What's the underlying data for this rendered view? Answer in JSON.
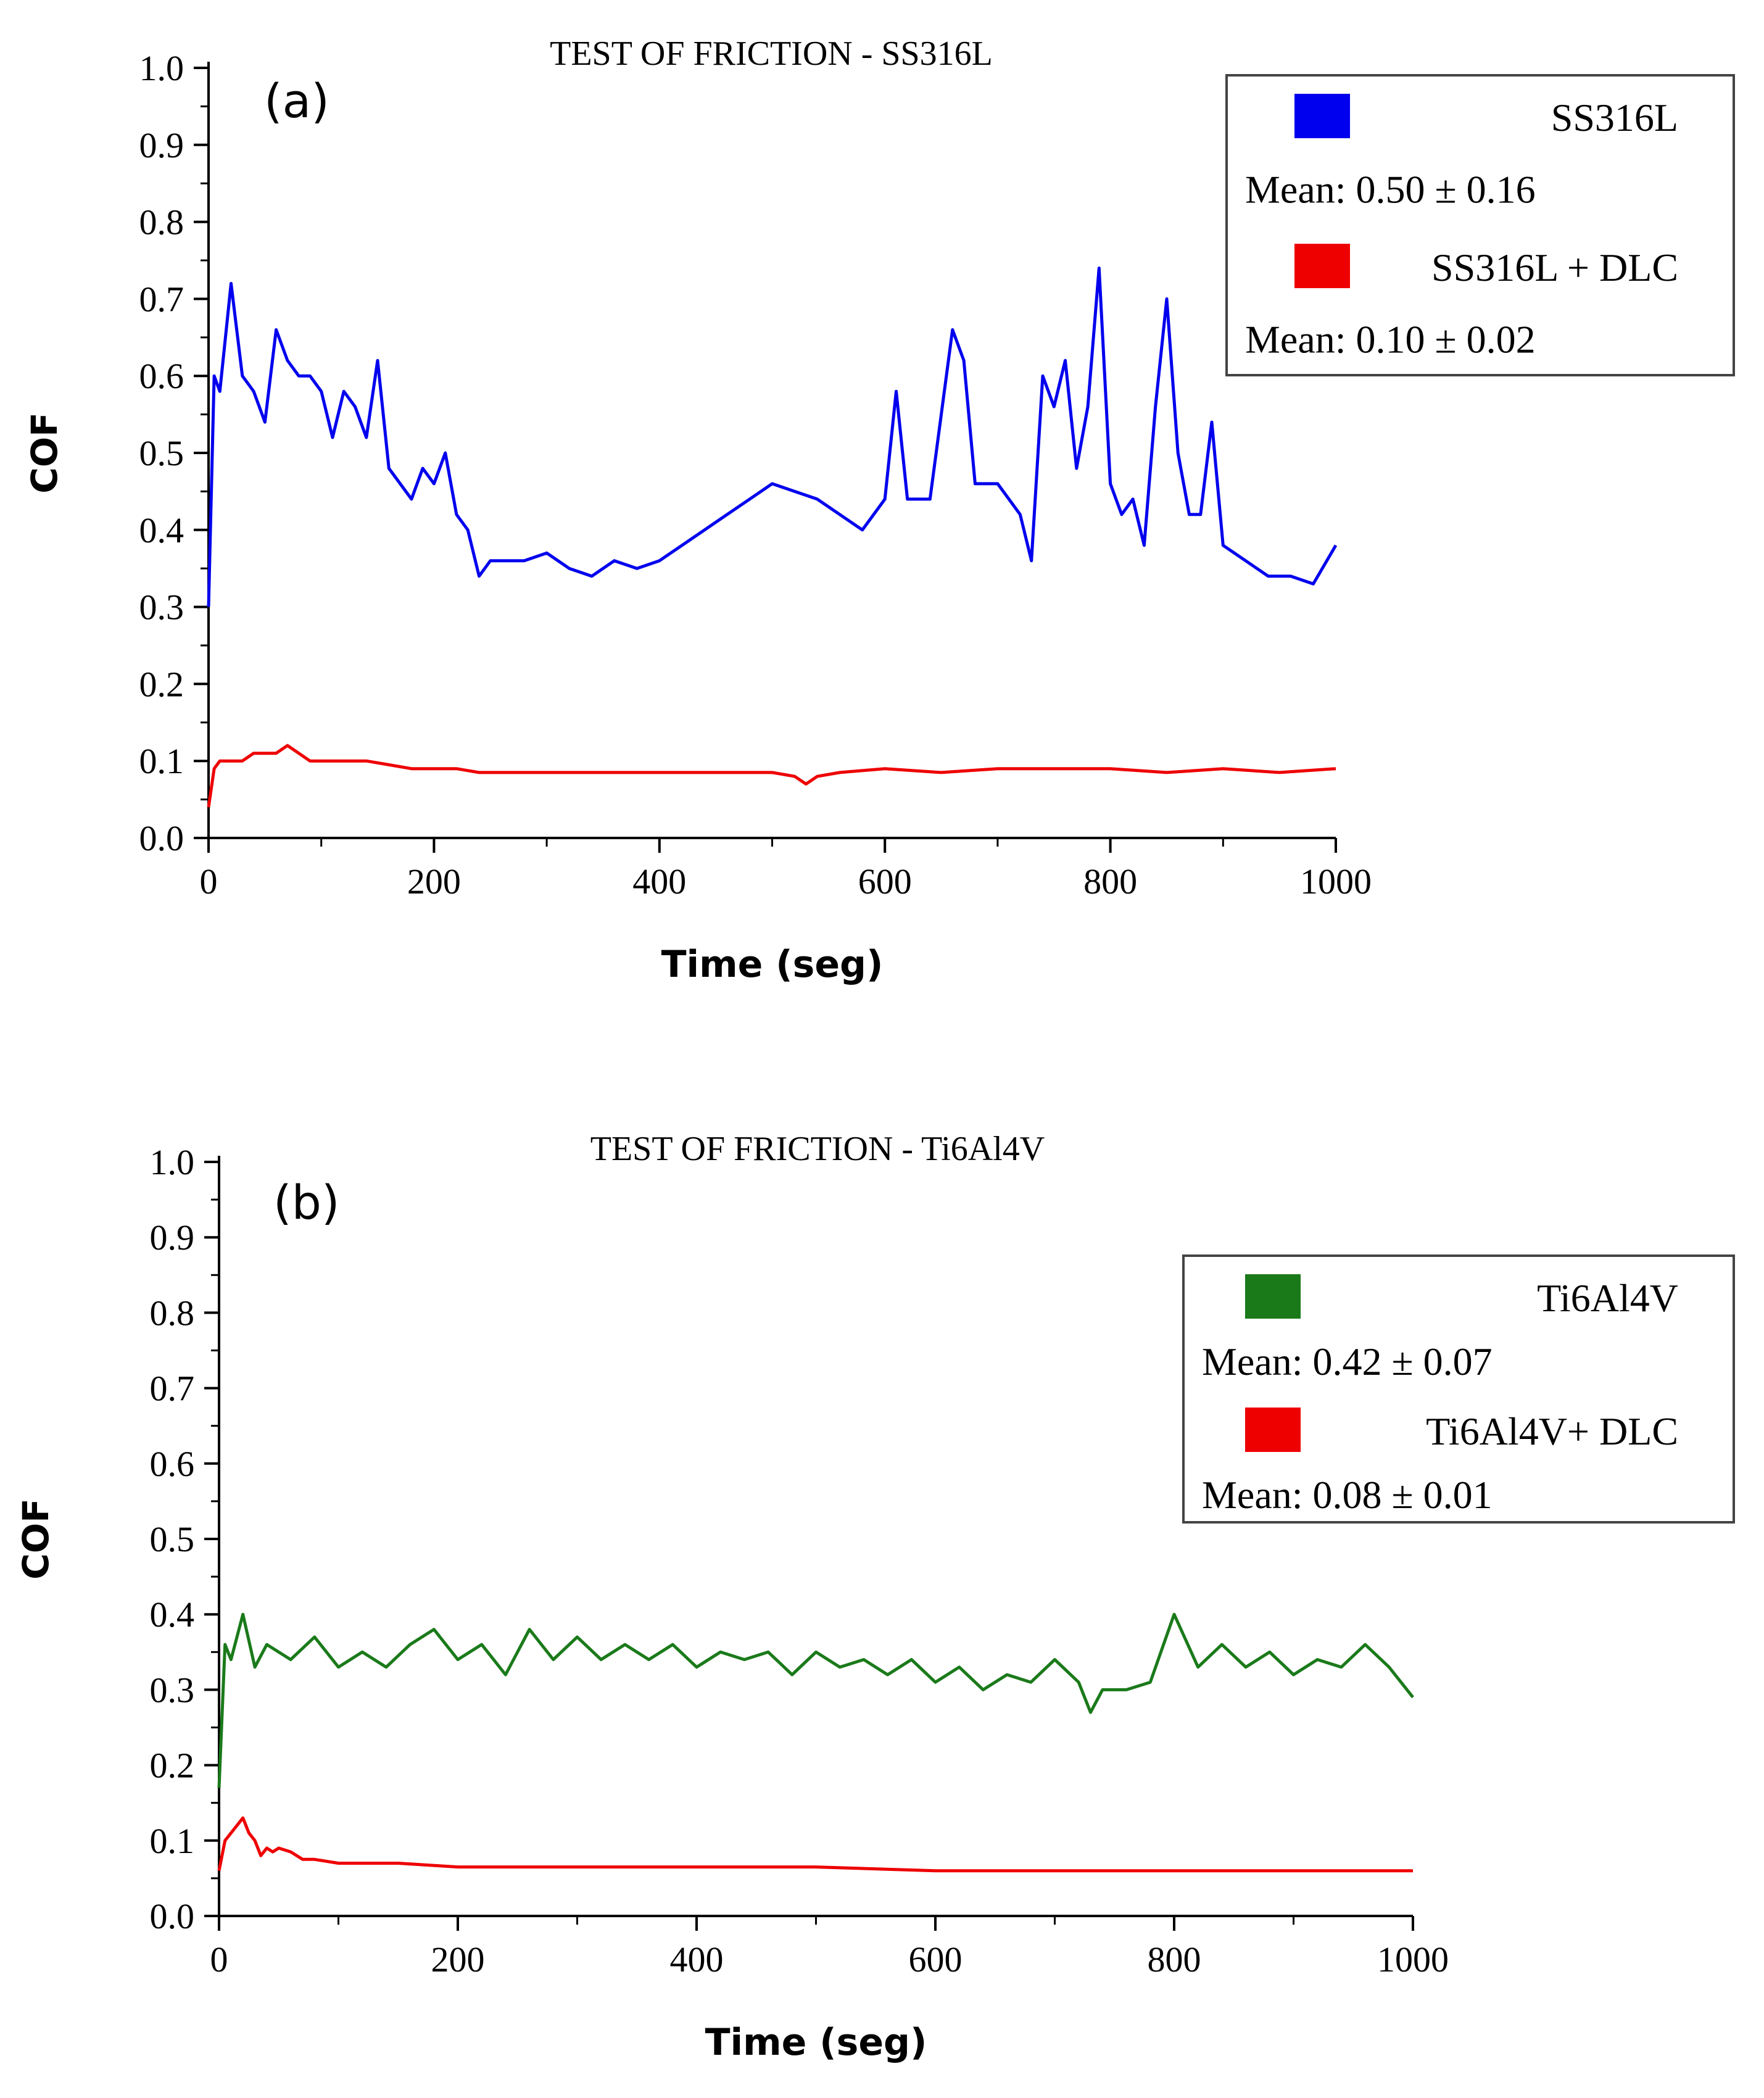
{
  "chart_data": [
    {
      "type": "line",
      "panel_label": "(a)",
      "title": "TEST OF FRICTION - SS316L",
      "xlabel": "Time (seg)",
      "ylabel": "COF",
      "xlim": [
        0,
        1000
      ],
      "ylim": [
        0,
        1.0
      ],
      "xticks": [
        "0",
        "200",
        "400",
        "600",
        "800",
        "1000"
      ],
      "yticks": [
        "0.0",
        "0.1",
        "0.2",
        "0.3",
        "0.4",
        "0.5",
        "0.6",
        "0.7",
        "0.8",
        "0.9",
        "1.0"
      ],
      "legend_position": "top-right",
      "series": [
        {
          "name": "SS316L",
          "color": "#0000ee",
          "mean_label": "Mean: 0.50 ± 0.16",
          "x": [
            0,
            5,
            10,
            20,
            30,
            40,
            50,
            60,
            70,
            80,
            90,
            100,
            110,
            120,
            130,
            140,
            150,
            160,
            170,
            180,
            190,
            200,
            210,
            220,
            230,
            240,
            250,
            260,
            280,
            300,
            320,
            340,
            360,
            380,
            400,
            420,
            440,
            460,
            480,
            500,
            520,
            540,
            560,
            580,
            600,
            610,
            620,
            640,
            660,
            670,
            680,
            700,
            720,
            730,
            740,
            750,
            760,
            770,
            780,
            790,
            800,
            810,
            820,
            830,
            840,
            850,
            860,
            870,
            880,
            890,
            900,
            920,
            940,
            960,
            980,
            1000
          ],
          "values": [
            0.3,
            0.6,
            0.58,
            0.72,
            0.6,
            0.58,
            0.54,
            0.66,
            0.62,
            0.6,
            0.6,
            0.58,
            0.52,
            0.58,
            0.56,
            0.52,
            0.62,
            0.48,
            0.46,
            0.44,
            0.48,
            0.46,
            0.5,
            0.42,
            0.4,
            0.34,
            0.36,
            0.36,
            0.36,
            0.37,
            0.35,
            0.34,
            0.36,
            0.35,
            0.36,
            0.38,
            0.4,
            0.42,
            0.44,
            0.46,
            0.45,
            0.44,
            0.42,
            0.4,
            0.44,
            0.58,
            0.44,
            0.44,
            0.66,
            0.62,
            0.46,
            0.46,
            0.42,
            0.36,
            0.6,
            0.56,
            0.62,
            0.48,
            0.56,
            0.74,
            0.46,
            0.42,
            0.44,
            0.38,
            0.56,
            0.7,
            0.5,
            0.42,
            0.42,
            0.54,
            0.38,
            0.36,
            0.34,
            0.34,
            0.33,
            0.38
          ]
        },
        {
          "name": "SS316L + DLC",
          "color": "#ee0000",
          "mean_label": "Mean: 0.10 ± 0.02",
          "x": [
            0,
            5,
            10,
            20,
            30,
            40,
            50,
            60,
            70,
            80,
            90,
            100,
            120,
            140,
            160,
            180,
            200,
            220,
            240,
            260,
            280,
            300,
            350,
            400,
            450,
            500,
            520,
            530,
            540,
            560,
            600,
            650,
            700,
            750,
            800,
            850,
            900,
            950,
            1000
          ],
          "values": [
            0.04,
            0.09,
            0.1,
            0.1,
            0.1,
            0.11,
            0.11,
            0.11,
            0.12,
            0.11,
            0.1,
            0.1,
            0.1,
            0.1,
            0.095,
            0.09,
            0.09,
            0.09,
            0.085,
            0.085,
            0.085,
            0.085,
            0.085,
            0.085,
            0.085,
            0.085,
            0.08,
            0.07,
            0.08,
            0.085,
            0.09,
            0.085,
            0.09,
            0.09,
            0.09,
            0.085,
            0.09,
            0.085,
            0.09
          ]
        }
      ]
    },
    {
      "type": "line",
      "panel_label": "(b)",
      "title": "TEST OF FRICTION - Ti6Al4V",
      "xlabel": "Time (seg)",
      "ylabel": "COF",
      "xlim": [
        0,
        1000
      ],
      "ylim": [
        0,
        1.0
      ],
      "xticks": [
        "0",
        "200",
        "400",
        "600",
        "800",
        "1000"
      ],
      "yticks": [
        "0.0",
        "0.1",
        "0.2",
        "0.3",
        "0.4",
        "0.5",
        "0.6",
        "0.7",
        "0.8",
        "0.9",
        "1.0"
      ],
      "legend_position": "top-right",
      "series": [
        {
          "name": "Ti6Al4V",
          "color": "#1a7a1a",
          "mean_label": "Mean: 0.42 ± 0.07",
          "x": [
            0,
            5,
            10,
            20,
            30,
            40,
            60,
            80,
            100,
            120,
            140,
            160,
            180,
            200,
            220,
            240,
            260,
            280,
            300,
            320,
            340,
            360,
            380,
            400,
            420,
            440,
            460,
            480,
            500,
            520,
            540,
            560,
            580,
            600,
            620,
            640,
            660,
            680,
            700,
            720,
            730,
            740,
            760,
            780,
            800,
            820,
            840,
            860,
            880,
            900,
            920,
            940,
            960,
            980,
            1000
          ],
          "values": [
            0.17,
            0.36,
            0.34,
            0.4,
            0.33,
            0.36,
            0.34,
            0.37,
            0.33,
            0.35,
            0.33,
            0.36,
            0.38,
            0.34,
            0.36,
            0.32,
            0.38,
            0.34,
            0.37,
            0.34,
            0.36,
            0.34,
            0.36,
            0.33,
            0.35,
            0.34,
            0.35,
            0.32,
            0.35,
            0.33,
            0.34,
            0.32,
            0.34,
            0.31,
            0.33,
            0.3,
            0.32,
            0.31,
            0.34,
            0.31,
            0.27,
            0.3,
            0.3,
            0.31,
            0.4,
            0.33,
            0.36,
            0.33,
            0.35,
            0.32,
            0.34,
            0.33,
            0.36,
            0.33,
            0.29
          ]
        },
        {
          "name": "Ti6Al4V+ DLC",
          "color": "#ee0000",
          "mean_label": "Mean: 0.08 ± 0.01",
          "x": [
            0,
            5,
            10,
            15,
            20,
            25,
            30,
            35,
            40,
            45,
            50,
            60,
            70,
            80,
            100,
            150,
            200,
            300,
            400,
            500,
            600,
            700,
            800,
            900,
            1000
          ],
          "values": [
            0.06,
            0.1,
            0.11,
            0.12,
            0.13,
            0.11,
            0.1,
            0.08,
            0.09,
            0.085,
            0.09,
            0.085,
            0.075,
            0.075,
            0.07,
            0.07,
            0.065,
            0.065,
            0.065,
            0.065,
            0.06,
            0.06,
            0.06,
            0.06,
            0.06
          ]
        }
      ]
    }
  ]
}
